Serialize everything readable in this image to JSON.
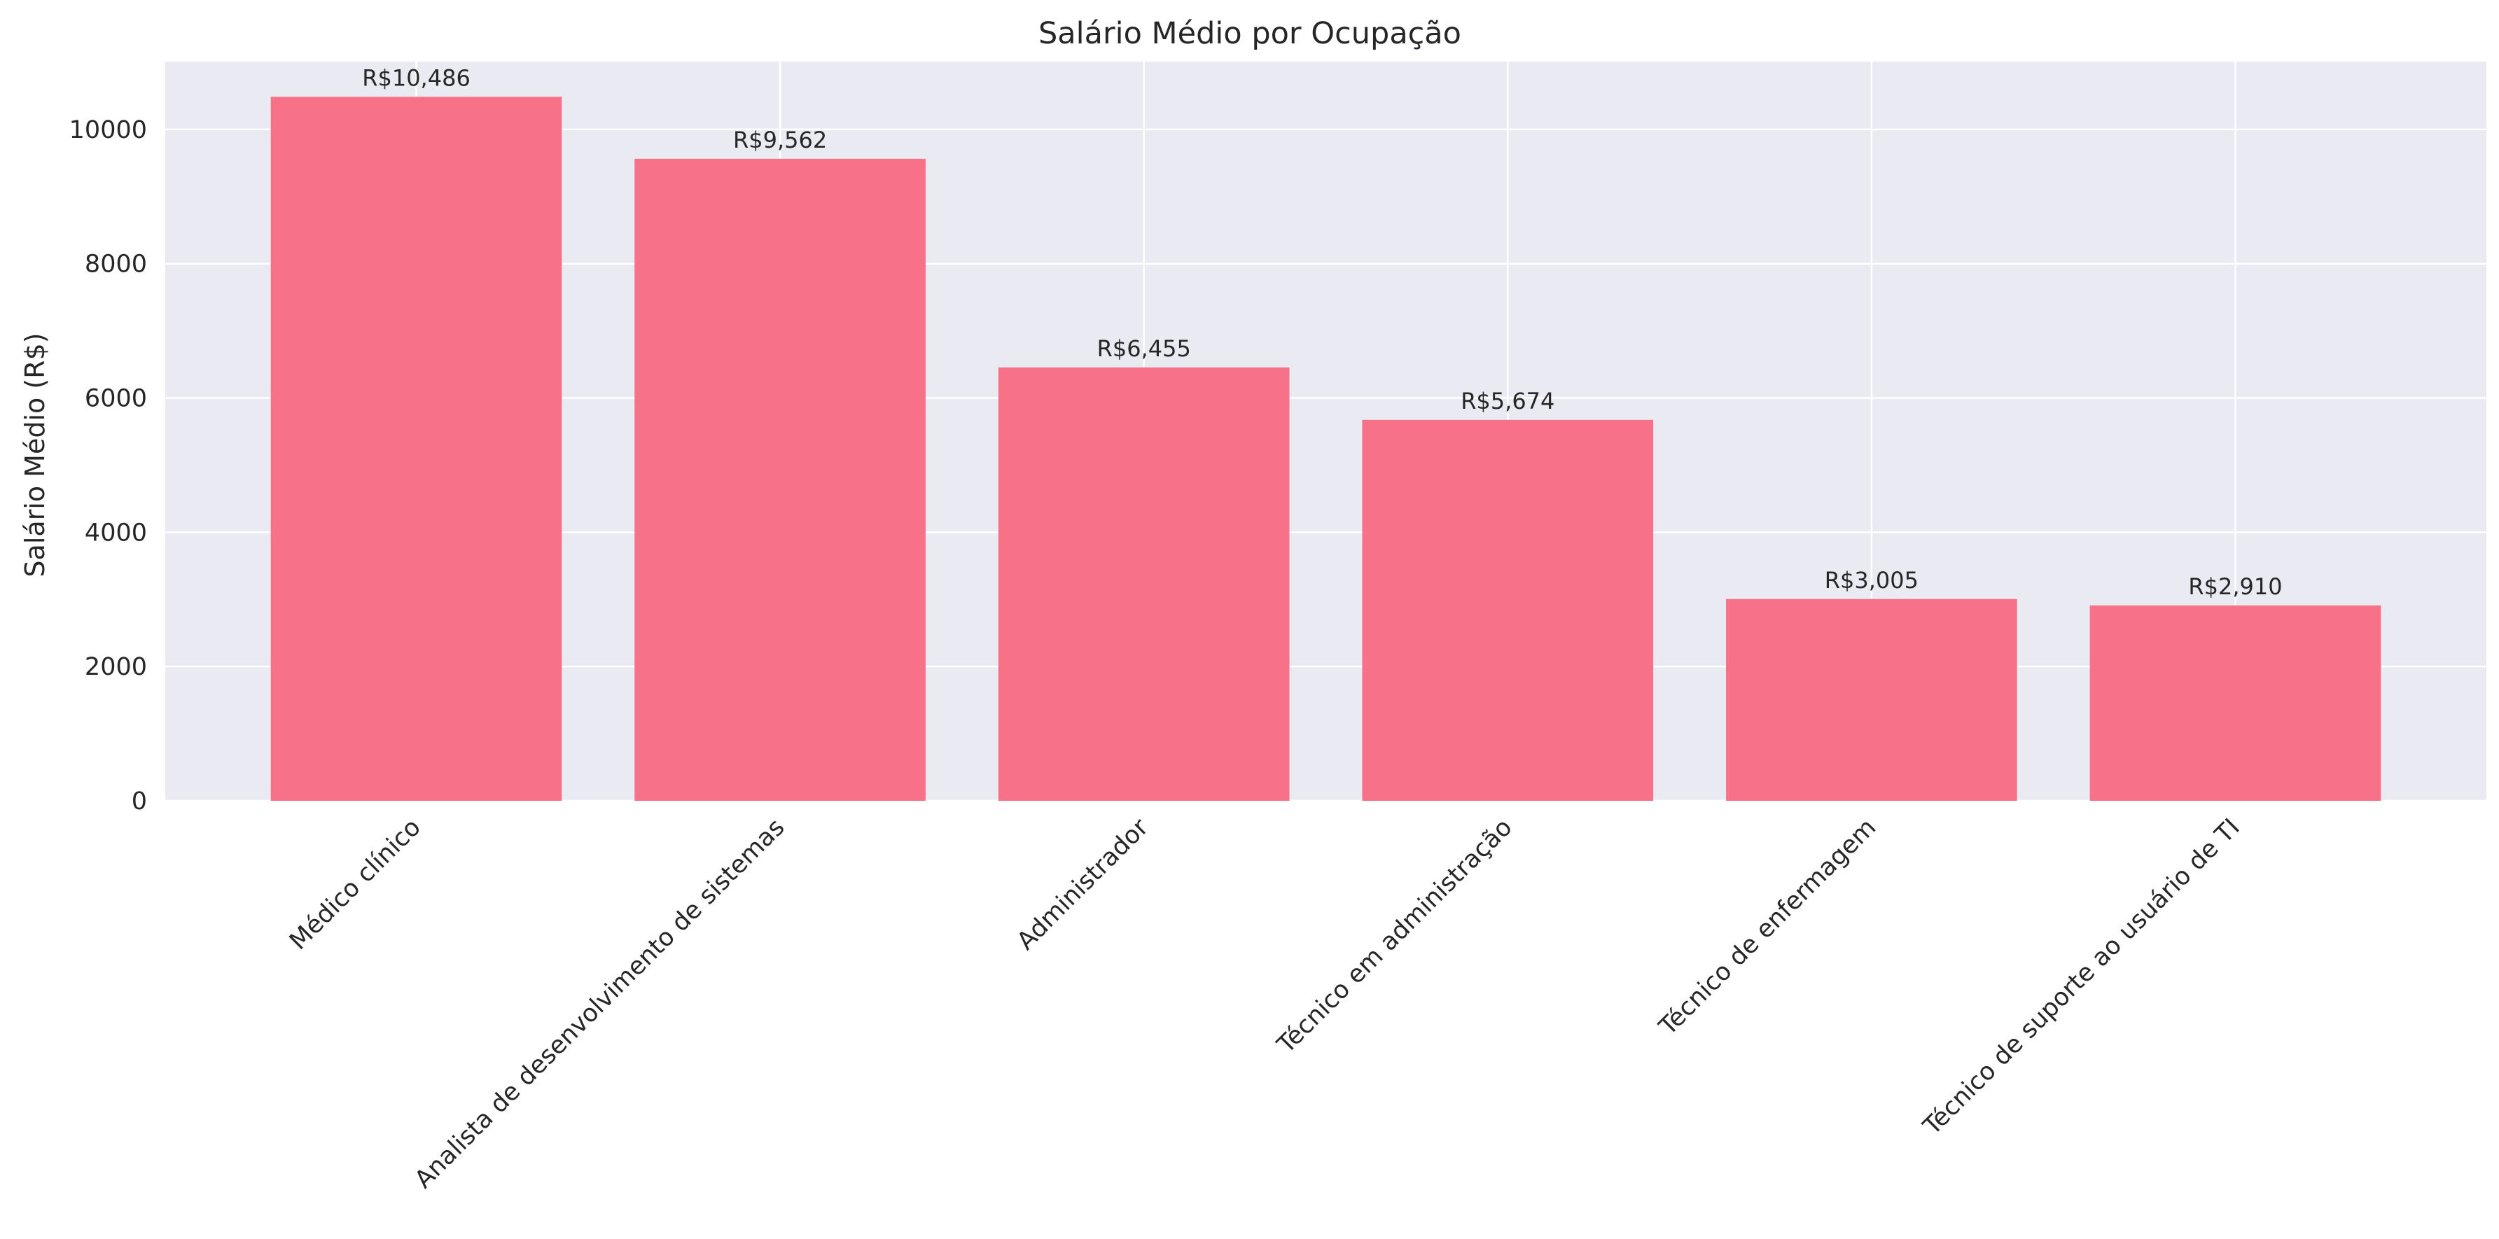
{
  "chart_data": {
    "type": "bar",
    "title": "Salário Médio por Ocupação",
    "xlabel": "",
    "ylabel": "Salário Médio (R$)",
    "categories": [
      "Médico clínico",
      "Analista de desenvolvimento de sistemas",
      "Administrador",
      "Técnico em administração",
      "Técnico de enfermagem",
      "Técnico de suporte ao usuário de TI"
    ],
    "values": [
      10486,
      9562,
      6455,
      5674,
      3005,
      2910
    ],
    "data_labels": [
      "R$10,486",
      "R$9,562",
      "R$6,455",
      "R$5,674",
      "R$3,005",
      "R$2,910"
    ],
    "y_ticks": [
      0,
      2000,
      4000,
      6000,
      8000,
      10000
    ],
    "ylim": [
      0,
      11010
    ],
    "grid": true,
    "bar_color": "#f77189",
    "plot_background": "#eaeaf2",
    "grid_color": "#ffffff"
  }
}
